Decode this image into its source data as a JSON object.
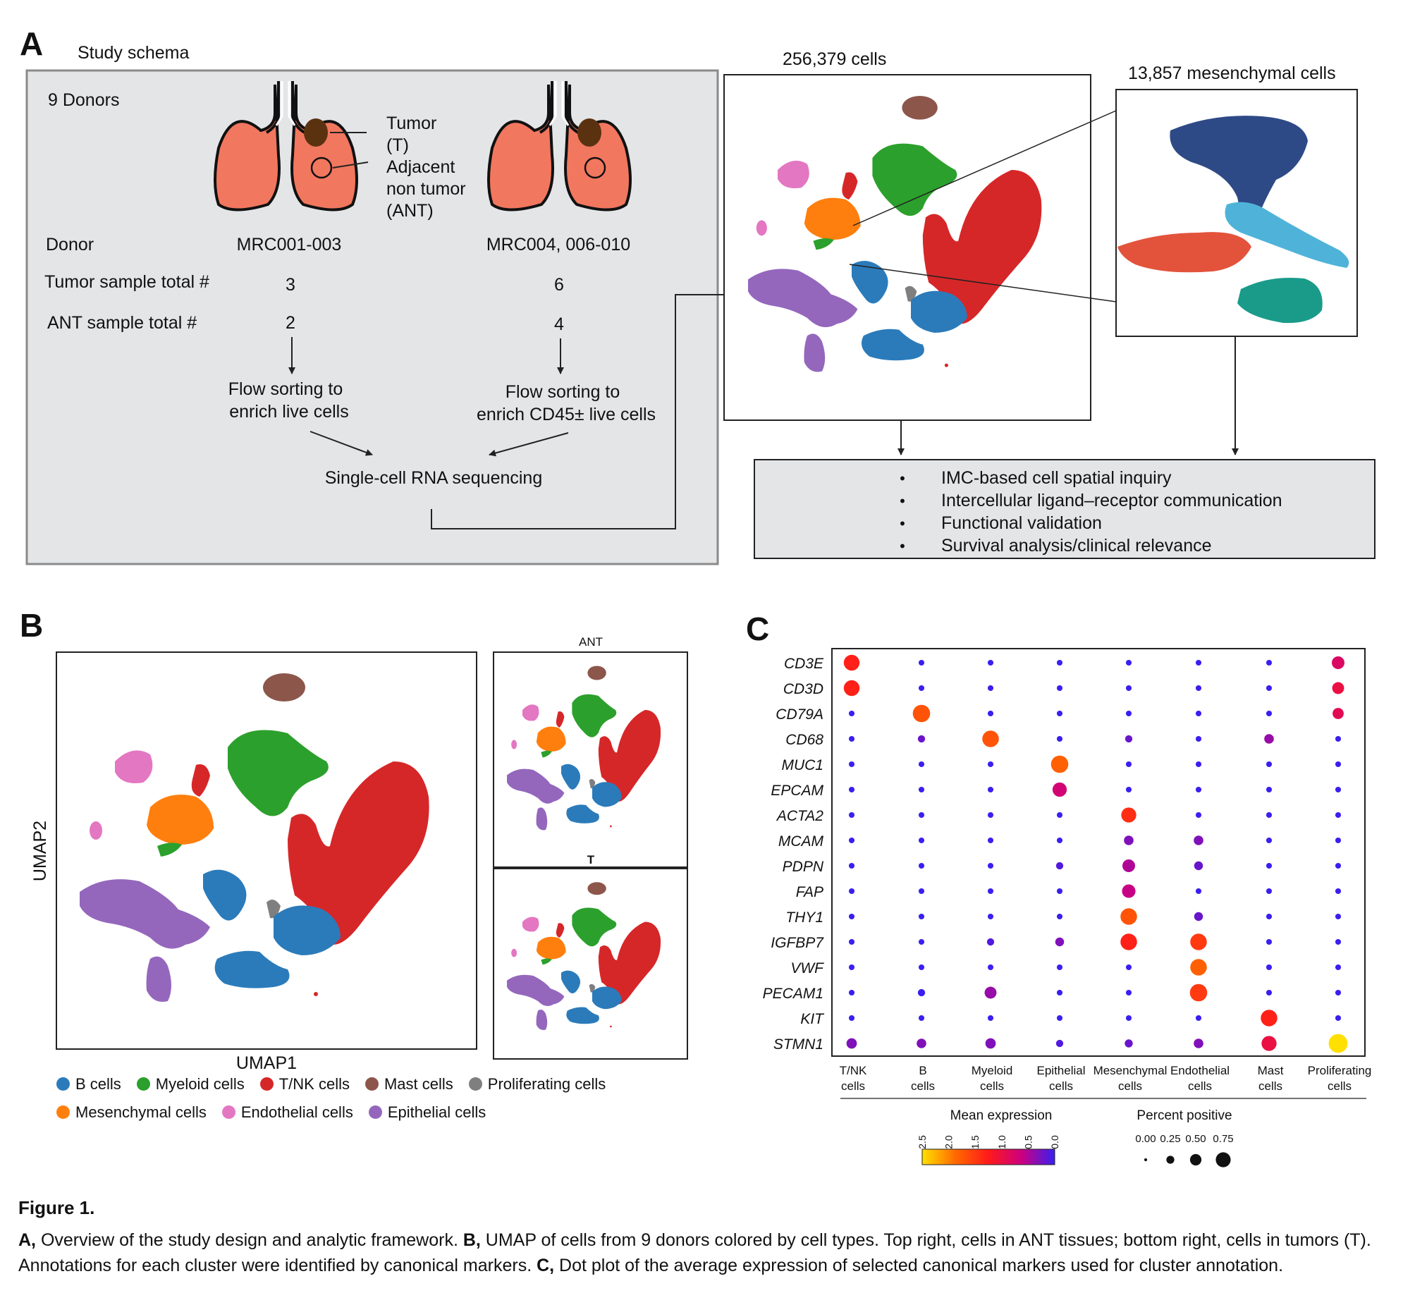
{
  "panelA": {
    "letter": "A",
    "schema_title": "Study schema",
    "donors_label": "9 Donors",
    "lung_labels": [
      "Tumor",
      "(T)",
      "Adjacent",
      "non tumor",
      "(ANT)"
    ],
    "donor_row_label": "Donor",
    "donor_left": "MRC001-003",
    "donor_right": "MRC004, 006-010",
    "tumor_total_label": "Tumor sample total #",
    "tumor_left": "3",
    "tumor_right": "6",
    "ant_total_label": "ANT sample total #",
    "ant_left": "2",
    "ant_right": "4",
    "flow_left": [
      "Flow sorting to",
      "enrich live cells"
    ],
    "flow_right": [
      "Flow sorting to",
      "enrich CD45± live cells"
    ],
    "sequencing_label": "Single-cell RNA sequencing",
    "cells_count_label": "256,379 cells",
    "mesenchymal_count_label": "13,857 mesenchymal cells",
    "bullets": [
      "IMC-based cell spatial inquiry",
      "Intercellular ligand–receptor communication",
      "Functional validation",
      "Survival analysis/clinical relevance"
    ],
    "bullet_symbol": "•"
  },
  "panelB": {
    "letter": "B",
    "xlabel": "UMAP1",
    "ylabel": "UMAP2",
    "ant_title": "ANT",
    "tumor_title": "T",
    "legend_row1": [
      {
        "label": "B cells",
        "color": "#2b7bba"
      },
      {
        "label": "Myeloid cells",
        "color": "#2ca02c"
      },
      {
        "label": "T/NK cells",
        "color": "#d62728"
      },
      {
        "label": "Mast cells",
        "color": "#8c564b"
      },
      {
        "label": "Proliferating cells",
        "color": "#7f7f7f"
      }
    ],
    "legend_row2": [
      {
        "label": "Mesenchymal cells",
        "color": "#ff7f0e"
      },
      {
        "label": "Endothelial cells",
        "color": "#e377c2"
      },
      {
        "label": "Epithelial cells",
        "color": "#9467bd"
      }
    ]
  },
  "panelC": {
    "letter": "C",
    "legend_expr_title": "Mean expression",
    "legend_expr_ticks": [
      "2.5",
      "2.0",
      "1.5",
      "1.0",
      "0.5",
      "0.0"
    ],
    "legend_pct_title": "Percent positive",
    "legend_pct_ticks": [
      "0.00",
      "0.25",
      "0.50",
      "0.75"
    ]
  },
  "chart_data": {
    "type": "scatter",
    "subtype": "dot-plot",
    "genes": [
      "CD3E",
      "CD3D",
      "CD79A",
      "CD68",
      "MUC1",
      "EPCAM",
      "ACTA2",
      "MCAM",
      "PDPN",
      "FAP",
      "THY1",
      "IGFBP7",
      "VWF",
      "PECAM1",
      "KIT",
      "STMN1"
    ],
    "cell_types": [
      [
        "T/NK",
        "cells"
      ],
      [
        "B",
        "cells"
      ],
      [
        "Myeloid",
        "cells"
      ],
      [
        "Epithelial",
        "cells"
      ],
      [
        "Mesenchymal",
        "cells"
      ],
      [
        "Endothelial",
        "cells"
      ],
      [
        "Mast",
        "cells"
      ],
      [
        "Proliferating",
        "cells"
      ]
    ],
    "mean_expression": [
      [
        1.3,
        0,
        0,
        0,
        0,
        0,
        0,
        0.8
      ],
      [
        1.3,
        0,
        0,
        0,
        0,
        0,
        0,
        1.0
      ],
      [
        0,
        1.7,
        0,
        0,
        0,
        0,
        0,
        0.9
      ],
      [
        0,
        0.2,
        1.7,
        0,
        0.2,
        0,
        0.4,
        0
      ],
      [
        0,
        0,
        0,
        1.8,
        0,
        0,
        0,
        0
      ],
      [
        0,
        0,
        0,
        0.7,
        0,
        0,
        0,
        0
      ],
      [
        0,
        0,
        0,
        0,
        1.4,
        0,
        0,
        0
      ],
      [
        0,
        0,
        0,
        0,
        0.3,
        0.3,
        0,
        0
      ],
      [
        0,
        0,
        0,
        0.1,
        0.5,
        0.2,
        0,
        0
      ],
      [
        0,
        0,
        0,
        0,
        0.6,
        0,
        0,
        0
      ],
      [
        0,
        0,
        0,
        0,
        1.7,
        0.2,
        0,
        0
      ],
      [
        0,
        0,
        0.1,
        0.3,
        1.3,
        1.5,
        0,
        0
      ],
      [
        0,
        0,
        0,
        0,
        0,
        1.8,
        0,
        0
      ],
      [
        0,
        0,
        0.4,
        0,
        0,
        1.5,
        0,
        0
      ],
      [
        0,
        0,
        0,
        0,
        0,
        0,
        1.3,
        0
      ],
      [
        0.3,
        0.3,
        0.3,
        0.1,
        0.2,
        0.3,
        1.0,
        2.5
      ]
    ],
    "percent_positive": [
      [
        0.7,
        0.05,
        0.05,
        0.05,
        0.05,
        0.05,
        0.05,
        0.5
      ],
      [
        0.7,
        0.05,
        0.05,
        0.05,
        0.05,
        0.05,
        0.05,
        0.45
      ],
      [
        0.05,
        0.8,
        0.05,
        0.05,
        0.05,
        0.05,
        0.05,
        0.4
      ],
      [
        0.05,
        0.15,
        0.75,
        0.05,
        0.15,
        0.05,
        0.3,
        0.05
      ],
      [
        0.05,
        0.05,
        0.05,
        0.8,
        0.05,
        0.05,
        0.05,
        0.05
      ],
      [
        0.05,
        0.05,
        0.05,
        0.6,
        0.05,
        0.05,
        0.05,
        0.05
      ],
      [
        0.05,
        0.05,
        0.05,
        0.05,
        0.65,
        0.05,
        0.05,
        0.05
      ],
      [
        0.05,
        0.05,
        0.05,
        0.05,
        0.3,
        0.3,
        0.05,
        0.05
      ],
      [
        0.05,
        0.05,
        0.05,
        0.15,
        0.5,
        0.25,
        0.05,
        0.05
      ],
      [
        0.05,
        0.05,
        0.05,
        0.05,
        0.55,
        0.05,
        0.05,
        0.05
      ],
      [
        0.05,
        0.05,
        0.05,
        0.05,
        0.75,
        0.25,
        0.05,
        0.05
      ],
      [
        0.05,
        0.05,
        0.15,
        0.25,
        0.75,
        0.75,
        0.05,
        0.05
      ],
      [
        0.05,
        0.05,
        0.05,
        0.05,
        0.05,
        0.75,
        0.05,
        0.05
      ],
      [
        0.05,
        0.15,
        0.45,
        0.05,
        0.05,
        0.8,
        0.05,
        0.05
      ],
      [
        0.05,
        0.05,
        0.05,
        0.05,
        0.05,
        0.05,
        0.75,
        0.05
      ],
      [
        0.35,
        0.3,
        0.35,
        0.15,
        0.2,
        0.3,
        0.65,
        0.9
      ]
    ],
    "color_scale": {
      "min": 0.0,
      "max": 2.5,
      "colors_low_to_high": [
        "#3a1ff0",
        "#cc0080",
        "#ff1a1a",
        "#ff6a00",
        "#ffe000"
      ]
    }
  },
  "caption": {
    "title": "Figure 1.",
    "parts": [
      {
        "bold": "A,",
        "text": " Overview of the study design and analytic framework. "
      },
      {
        "bold": "B,",
        "text": " UMAP of cells from 9 donors colored by cell types. Top right, cells in ANT tissues; bottom right, cells in tumors (T). Annotations for each cluster were identified by canonical markers. "
      },
      {
        "bold": "C,",
        "text": " Dot plot of the average expression of selected canonical markers used for cluster annotation."
      }
    ]
  }
}
